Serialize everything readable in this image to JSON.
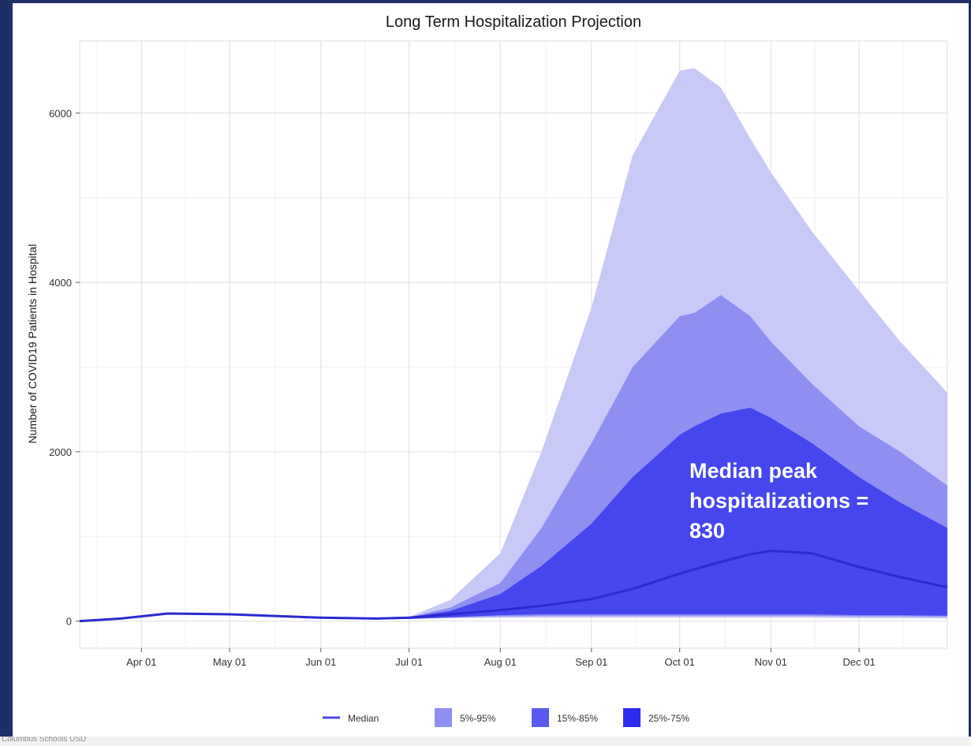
{
  "chart_data": {
    "type": "area",
    "title": "Long Term Hospitalization Projection",
    "ylabel": "Number of COVID19 Patients in Hospital",
    "xlabel": "",
    "ylim": [
      -320,
      6850
    ],
    "yticks": [
      0,
      2000,
      4000,
      6000
    ],
    "xlim": [
      "2020-03-11",
      "2020-12-31"
    ],
    "xticks": [
      {
        "date": "2020-04-01",
        "label": "Apr 01"
      },
      {
        "date": "2020-05-01",
        "label": "May 01"
      },
      {
        "date": "2020-06-01",
        "label": "Jun 01"
      },
      {
        "date": "2020-07-01",
        "label": "Jul 01"
      },
      {
        "date": "2020-08-01",
        "label": "Aug 01"
      },
      {
        "date": "2020-09-01",
        "label": "Sep 01"
      },
      {
        "date": "2020-10-01",
        "label": "Oct 01"
      },
      {
        "date": "2020-11-01",
        "label": "Nov 01"
      },
      {
        "date": "2020-12-01",
        "label": "Dec 01"
      }
    ],
    "grid": true,
    "legend_position": "bottom",
    "x": [
      "2020-03-11",
      "2020-03-25",
      "2020-04-10",
      "2020-05-01",
      "2020-06-01",
      "2020-06-20",
      "2020-07-01",
      "2020-07-15",
      "2020-08-01",
      "2020-08-15",
      "2020-09-01",
      "2020-09-15",
      "2020-10-01",
      "2020-10-06",
      "2020-10-15",
      "2020-10-25",
      "2020-11-01",
      "2020-11-15",
      "2020-12-01",
      "2020-12-15",
      "2020-12-31"
    ],
    "median": [
      0,
      30,
      90,
      80,
      40,
      30,
      40,
      80,
      130,
      180,
      260,
      380,
      560,
      610,
      700,
      790,
      830,
      800,
      640,
      520,
      400
    ],
    "bands": [
      {
        "name": "5%-95%",
        "color": "#c9c9f7",
        "lower": [
          0,
          25,
          80,
          70,
          30,
          22,
          25,
          35,
          40,
          40,
          40,
          40,
          40,
          40,
          40,
          40,
          40,
          40,
          35,
          35,
          30
        ],
        "upper": [
          0,
          35,
          95,
          85,
          45,
          35,
          50,
          250,
          800,
          2000,
          3700,
          5500,
          6500,
          6530,
          6300,
          5700,
          5300,
          4600,
          3900,
          3300,
          2700
        ]
      },
      {
        "name": "15%-85%",
        "color": "#8f8ff2",
        "lower": [
          0,
          25,
          80,
          70,
          30,
          22,
          25,
          40,
          55,
          60,
          60,
          60,
          60,
          60,
          60,
          60,
          60,
          60,
          55,
          55,
          50
        ],
        "upper": [
          0,
          35,
          95,
          85,
          45,
          35,
          45,
          160,
          450,
          1100,
          2100,
          3000,
          3600,
          3640,
          3850,
          3600,
          3300,
          2800,
          2300,
          2000,
          1600
        ]
      },
      {
        "name": "25%-75%",
        "color": "#4646ee",
        "lower": [
          0,
          25,
          80,
          70,
          30,
          22,
          25,
          45,
          70,
          80,
          80,
          80,
          80,
          80,
          80,
          80,
          80,
          80,
          70,
          70,
          65
        ],
        "upper": [
          0,
          35,
          95,
          85,
          45,
          35,
          45,
          120,
          320,
          650,
          1150,
          1700,
          2200,
          2300,
          2450,
          2520,
          2400,
          2100,
          1700,
          1400,
          1100
        ]
      }
    ],
    "median_color": "#2a2acf",
    "annotation": {
      "text": "Median peak hospitalizations = 830",
      "lines": [
        "Median peak",
        "hospitalizations =",
        "830"
      ],
      "color": "#ffffff"
    },
    "legend": [
      {
        "label": "Median",
        "kind": "line",
        "color": "#4a4ae6"
      },
      {
        "label": "5%-95%",
        "kind": "box",
        "color": "#8f8ff2"
      },
      {
        "label": "15%-85%",
        "kind": "box",
        "color": "#5a5aee"
      },
      {
        "label": "25%-75%",
        "kind": "box",
        "color": "#2c2cee"
      }
    ]
  },
  "footer": {
    "text": "Columbus Schools USD"
  }
}
